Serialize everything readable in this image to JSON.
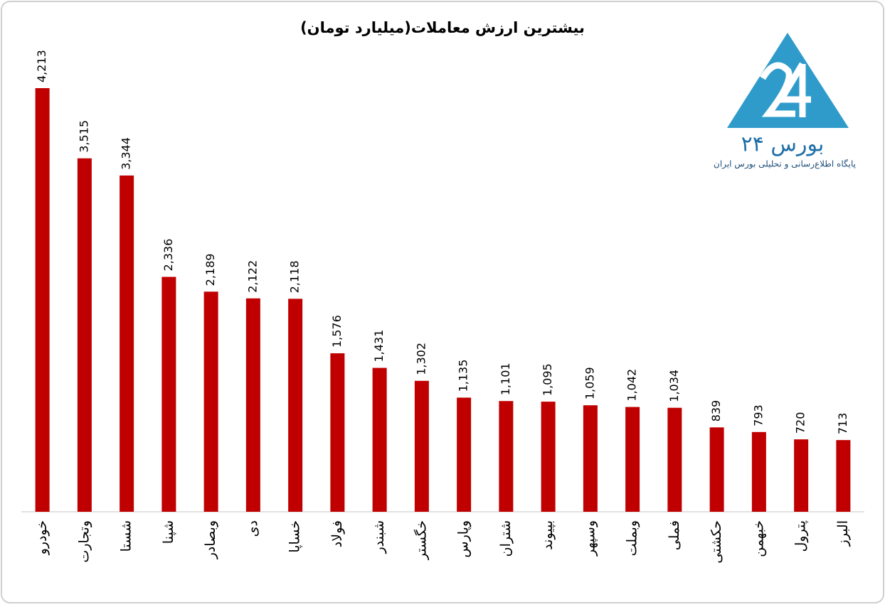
{
  "chart_data": {
    "type": "bar",
    "title": "بیشترین ارزش معاملات(میلیارد تومان)",
    "categories": [
      "خودرو",
      "وتجارت",
      "شستا",
      "شپنا",
      "وبصادر",
      "دی",
      "خساپا",
      "فولاد",
      "شبندر",
      "خگستر",
      "وپارس",
      "شتران",
      "بپیوند",
      "وسپهر",
      "وبملت",
      "فملی",
      "حکشتی",
      "خبهمن",
      "پترول",
      "البرز"
    ],
    "values": [
      4213,
      3515,
      3344,
      2336,
      2189,
      2122,
      2118,
      1576,
      1431,
      1302,
      1135,
      1101,
      1095,
      1059,
      1042,
      1034,
      839,
      793,
      720,
      713
    ],
    "value_labels": [
      "4,213",
      "3,515",
      "3,344",
      "2,336",
      "2,189",
      "2,122",
      "2,118",
      "1,576",
      "1,431",
      "1,302",
      "1,135",
      "1,101",
      "1,095",
      "1,059",
      "1,042",
      "1,034",
      "839",
      "793",
      "720",
      "713"
    ],
    "color": "#c00000"
  },
  "logo": {
    "name": "بورس ۲۴",
    "tagline": "پایگاه اطلاع‌رسانی و تحلیلی بورس ایران"
  }
}
